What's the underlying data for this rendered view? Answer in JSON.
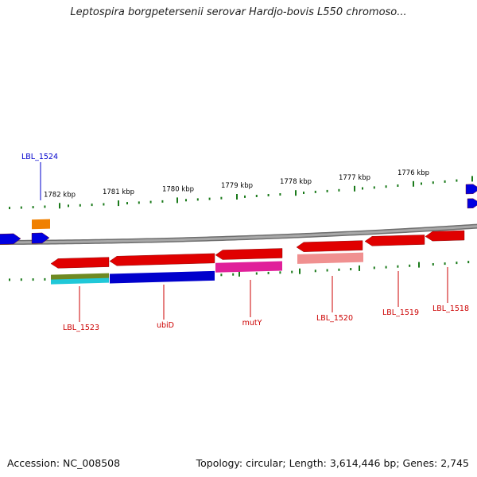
{
  "title": "Leptospira borgpetersenii serovar Hardjo-bovis L550 chromoso...",
  "footer": {
    "accession": "Accession: NC_008508",
    "topology": "Topology: circular; Length: 3,614,446 bp; Genes: 2,745"
  },
  "scale_labels": [
    "1782 kbp",
    "1781 kbp",
    "1780 kbp",
    "1779 kbp",
    "1778 kbp",
    "1777 kbp",
    "1776 kbp"
  ],
  "gene_labels": [
    {
      "text": "LBL_1524",
      "color": "#0000cc"
    },
    {
      "text": "LBL_1523",
      "color": "#cc0000"
    },
    {
      "text": "ubiD",
      "color": "#cc0000"
    },
    {
      "text": "mutY",
      "color": "#cc0000"
    },
    {
      "text": "LBL_1520",
      "color": "#cc0000"
    },
    {
      "text": "LBL_1519",
      "color": "#cc0000"
    },
    {
      "text": "LBL_1518",
      "color": "#cc0000"
    }
  ],
  "colors": {
    "backbone": "#8a8a8a",
    "tick": "#1a7a1a",
    "forward_gene": "#0000e0",
    "reverse_gene": "#e00000",
    "orange": "#f08000",
    "olive": "#6f8a22",
    "cyan": "#20c8d8",
    "blue_annotation": "#0000cc",
    "magenta": "#e0209a",
    "pink": "#f09090"
  }
}
